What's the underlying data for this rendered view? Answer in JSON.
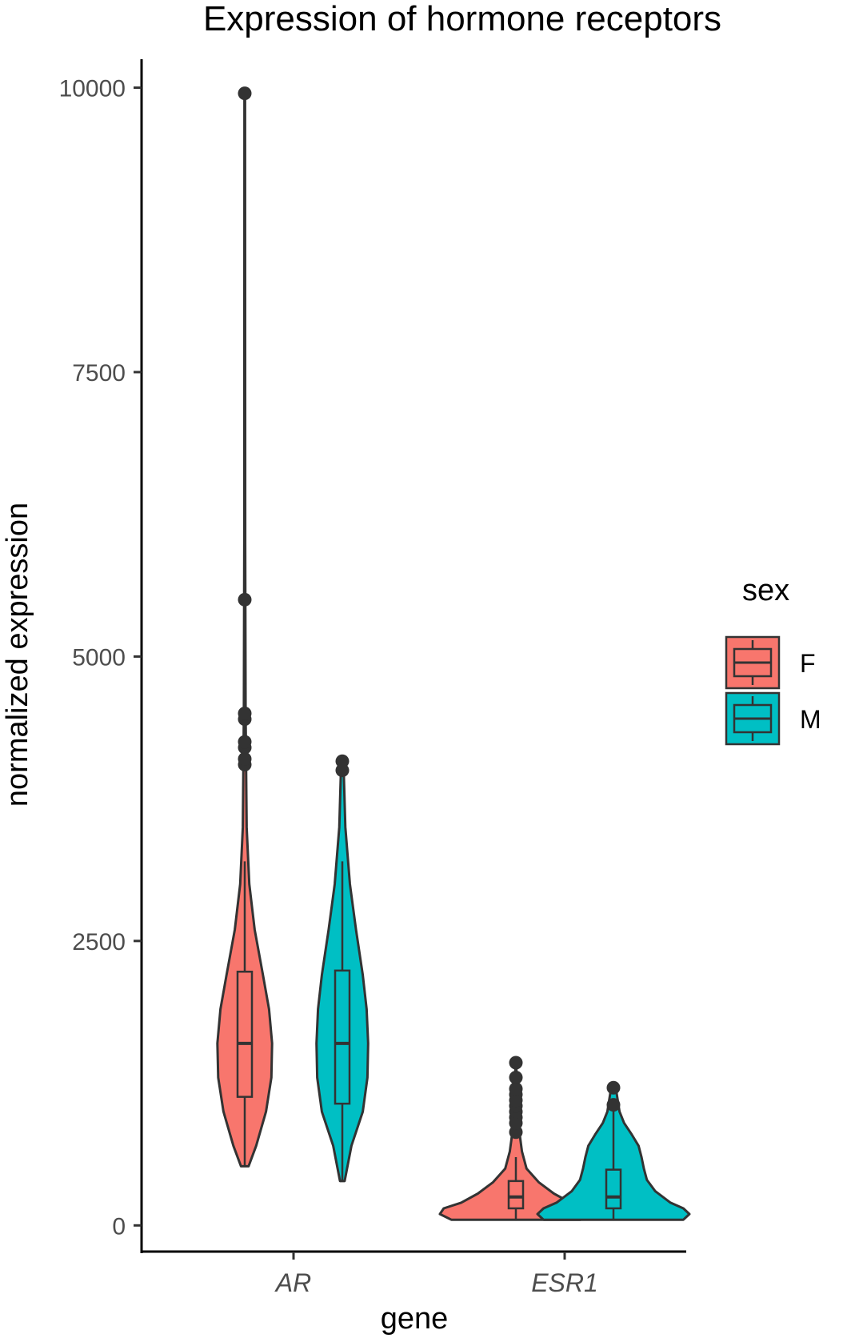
{
  "chart_data": {
    "type": "violin",
    "title": "Expression of hormone receptors",
    "xlabel": "gene",
    "ylabel": "normalized expression",
    "categories": [
      "AR",
      "ESR1"
    ],
    "ylim": [
      -230,
      10250
    ],
    "yticks": [
      0,
      2500,
      5000,
      7500,
      10000
    ],
    "grid": false,
    "legend": {
      "title": "sex",
      "position": "right",
      "entries": [
        {
          "name": "F",
          "color": "#f8766d"
        },
        {
          "name": "M",
          "color": "#00bfc4"
        }
      ]
    },
    "series": [
      {
        "name": "F",
        "color": "#f8766d",
        "groups": [
          {
            "category": "AR",
            "min": 520,
            "max": 9950,
            "q1": 1130,
            "median": 1600,
            "q3": 2230,
            "whisker_low": 520,
            "whisker_high": 3200,
            "outliers": [
              4050,
              4100,
              4200,
              4250,
              4450,
              4500,
              5500,
              9950
            ],
            "density": [
              [
                520,
                0.05
              ],
              [
                700,
                0.15
              ],
              [
                1000,
                0.28
              ],
              [
                1300,
                0.35
              ],
              [
                1600,
                0.36
              ],
              [
                1900,
                0.32
              ],
              [
                2200,
                0.24
              ],
              [
                2600,
                0.13
              ],
              [
                3000,
                0.06
              ],
              [
                3500,
                0.025
              ],
              [
                4500,
                0.012
              ],
              [
                6000,
                0.006
              ],
              [
                9950,
                0.004
              ]
            ]
          },
          {
            "category": "ESR1",
            "min": 50,
            "max": 1430,
            "q1": 150,
            "median": 250,
            "q3": 390,
            "whisker_low": 50,
            "whisker_high": 600,
            "outliers": [
              820,
              900,
              950,
              1000,
              1050,
              1100,
              1150,
              1200,
              1300,
              1430
            ],
            "density": [
              [
                50,
                0.85
              ],
              [
                100,
                1.0
              ],
              [
                150,
                0.95
              ],
              [
                200,
                0.72
              ],
              [
                280,
                0.5
              ],
              [
                380,
                0.3
              ],
              [
                500,
                0.14
              ],
              [
                650,
                0.08
              ],
              [
                800,
                0.05
              ],
              [
                1000,
                0.025
              ],
              [
                1200,
                0.012
              ],
              [
                1430,
                0.005
              ]
            ]
          }
        ]
      },
      {
        "name": "M",
        "color": "#00bfc4",
        "groups": [
          {
            "category": "AR",
            "min": 390,
            "max": 4080,
            "q1": 1070,
            "median": 1600,
            "q3": 2240,
            "whisker_low": 390,
            "whisker_high": 3200,
            "outliers": [
              4000,
              4080
            ],
            "density": [
              [
                390,
                0.03
              ],
              [
                700,
                0.12
              ],
              [
                1000,
                0.27
              ],
              [
                1300,
                0.33
              ],
              [
                1600,
                0.34
              ],
              [
                1900,
                0.32
              ],
              [
                2200,
                0.27
              ],
              [
                2600,
                0.18
              ],
              [
                3000,
                0.1
              ],
              [
                3500,
                0.04
              ],
              [
                4080,
                0.015
              ]
            ]
          },
          {
            "category": "ESR1",
            "min": 50,
            "max": 1210,
            "q1": 150,
            "median": 250,
            "q3": 490,
            "whisker_low": 50,
            "whisker_high": 1010,
            "outliers": [
              1060,
              1210
            ],
            "density": [
              [
                50,
                0.92
              ],
              [
                100,
                1.0
              ],
              [
                150,
                0.92
              ],
              [
                200,
                0.75
              ],
              [
                300,
                0.55
              ],
              [
                400,
                0.44
              ],
              [
                500,
                0.4
              ],
              [
                600,
                0.37
              ],
              [
                700,
                0.33
              ],
              [
                800,
                0.24
              ],
              [
                900,
                0.14
              ],
              [
                1000,
                0.08
              ],
              [
                1210,
                0.03
              ]
            ]
          }
        ]
      }
    ]
  }
}
